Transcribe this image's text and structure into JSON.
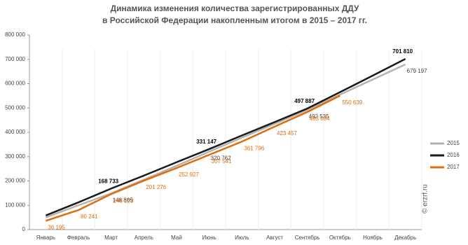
{
  "chart_data": {
    "type": "line",
    "title": "Динамика изменения количества зарегистрированных ДДУ",
    "subtitle": "в Российской Федерации накопленным итогом в 2015 – 2017 гг.",
    "annotation": "© erzrf.ru",
    "categories": [
      "Январь",
      "Февраль",
      "Март",
      "Апрель",
      "Май",
      "Июнь",
      "Июль",
      "Август",
      "Сентябрь",
      "Октябрь",
      "Ноябрь",
      "Декабрь"
    ],
    "ylim": [
      0,
      800000
    ],
    "yticks": [
      0,
      {
        "value": 100000,
        "label": "100 000"
      },
      {
        "value": 200000,
        "label": "200 000"
      },
      {
        "value": 300000,
        "label": "300 000"
      },
      {
        "value": 400000,
        "label": "400 000"
      },
      {
        "value": 500000,
        "label": "500 000"
      },
      {
        "value": 600000,
        "label": "600 000"
      },
      {
        "value": 700000,
        "label": "700 000"
      },
      {
        "value": 800000,
        "label": "800 000"
      }
    ],
    "legend": "right",
    "series": [
      {
        "name": "2015",
        "color": "#b3b3b3",
        "values": [
          50000,
          100000,
          148865,
          205000,
          262000,
          320762,
          378000,
          435000,
          492535,
          555000,
          617000,
          679197
        ],
        "value_labels": [
          null,
          null,
          "148 865",
          null,
          null,
          "320 762",
          null,
          null,
          "492 535",
          null,
          null,
          "679 197"
        ]
      },
      {
        "name": "2016",
        "color": "#1a1a1a",
        "values": [
          58000,
          112000,
          168733,
          222000,
          277000,
          331147,
          387000,
          442000,
          497887,
          565000,
          633000,
          701810
        ],
        "value_labels": [
          null,
          null,
          "168 733",
          null,
          null,
          "331 147",
          null,
          null,
          "497 887",
          null,
          null,
          "701 810"
        ]
      },
      {
        "name": "2017",
        "color": "#e36c0a",
        "values": [
          36195,
          80241,
          146123,
          201276,
          252927,
          307541,
          361796,
          423457,
          483634,
          550639,
          null,
          null
        ],
        "value_labels": [
          "36 195",
          "80 241",
          "146 123",
          "201 276",
          "252 927",
          "307 541",
          "361 796",
          "423 457",
          "483 634",
          "550 639",
          null,
          null
        ]
      }
    ]
  }
}
